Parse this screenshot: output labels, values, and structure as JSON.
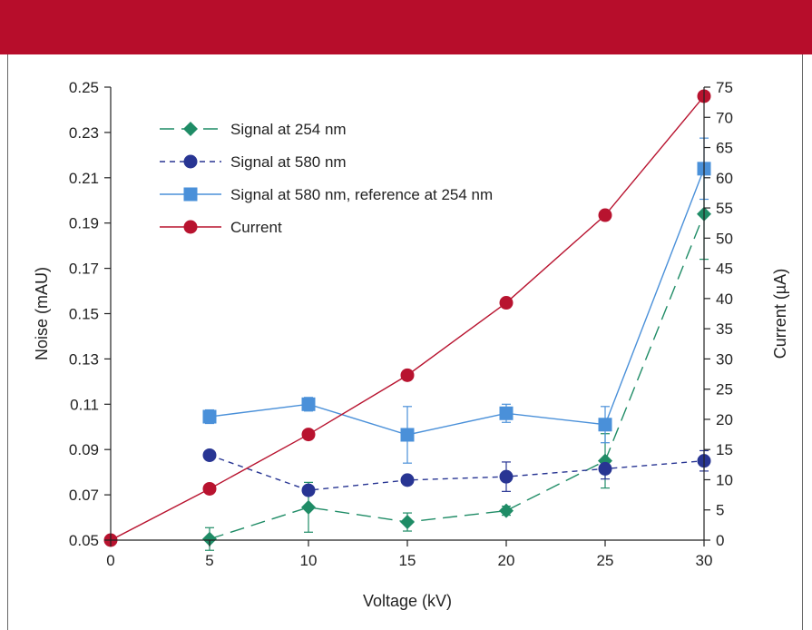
{
  "colors": {
    "banner": "#b70d2b"
  },
  "chart_data": {
    "type": "line",
    "xlabel": "Voltage (kV)",
    "ylabel_left": "Noise (mAU)",
    "ylabel_right": "Current (µA)",
    "xlim": [
      0,
      30
    ],
    "ylim_left": [
      0.05,
      0.25
    ],
    "ylim_right": [
      0,
      75
    ],
    "x_ticks": [
      0,
      5,
      10,
      15,
      20,
      25,
      30
    ],
    "x_tick_labels": [
      "0",
      "5",
      "10",
      "15",
      "20",
      "25",
      "30"
    ],
    "y_left_ticks": [
      0.05,
      0.07,
      0.09,
      0.11,
      0.13,
      0.15,
      0.17,
      0.19,
      0.21,
      0.23,
      0.25
    ],
    "y_left_tick_labels": [
      "0.05",
      "0.07",
      "0.09",
      "0.11",
      "0.13",
      "0.15",
      "0.17",
      "0.19",
      "0.21",
      "0.23",
      "0.25"
    ],
    "y_right_ticks": [
      0,
      5,
      10,
      15,
      20,
      25,
      30,
      35,
      40,
      45,
      50,
      55,
      60,
      65,
      70,
      75
    ],
    "y_right_tick_labels": [
      "0",
      "5",
      "10",
      "15",
      "20",
      "25",
      "30",
      "35",
      "40",
      "45",
      "50",
      "55",
      "60",
      "65",
      "70",
      "75"
    ],
    "grid": false,
    "legend_position": "top-left",
    "series": [
      {
        "name": "Signal at 254 nm",
        "axis": "left",
        "color": "#1f8c66",
        "marker": "diamond",
        "line": "long-dash",
        "x": [
          5,
          10,
          15,
          20,
          25,
          30
        ],
        "y": [
          0.0505,
          0.0645,
          0.058,
          0.063,
          0.085,
          0.194
        ],
        "err": [
          0.005,
          0.011,
          0.004,
          0.002,
          0.012,
          0.02
        ]
      },
      {
        "name": "Signal at 580 nm",
        "axis": "left",
        "color": "#283593",
        "marker": "circle",
        "line": "short-dash",
        "x": [
          5,
          10,
          15,
          20,
          25,
          30
        ],
        "y": [
          0.0875,
          0.072,
          0.0765,
          0.078,
          0.0815,
          0.085
        ],
        "err": [
          0.002,
          0.002,
          0.0015,
          0.0065,
          0.0045,
          0.0045
        ]
      },
      {
        "name": "Signal at 580 nm, reference at 254 nm",
        "axis": "left",
        "color": "#4a90d9",
        "marker": "square",
        "line": "solid",
        "x": [
          5,
          10,
          15,
          20,
          25,
          30
        ],
        "y": [
          0.1045,
          0.11,
          0.0965,
          0.106,
          0.101,
          0.214
        ],
        "err": [
          0.003,
          0.003,
          0.0125,
          0.004,
          0.008,
          0.0135
        ]
      },
      {
        "name": "Current",
        "axis": "right",
        "color": "#b8132f",
        "marker": "circle",
        "line": "solid",
        "x": [
          0,
          5,
          10,
          15,
          20,
          25,
          30
        ],
        "y": [
          0,
          8.5,
          17.5,
          27.3,
          39.3,
          53.8,
          73.5
        ],
        "err": []
      }
    ]
  }
}
